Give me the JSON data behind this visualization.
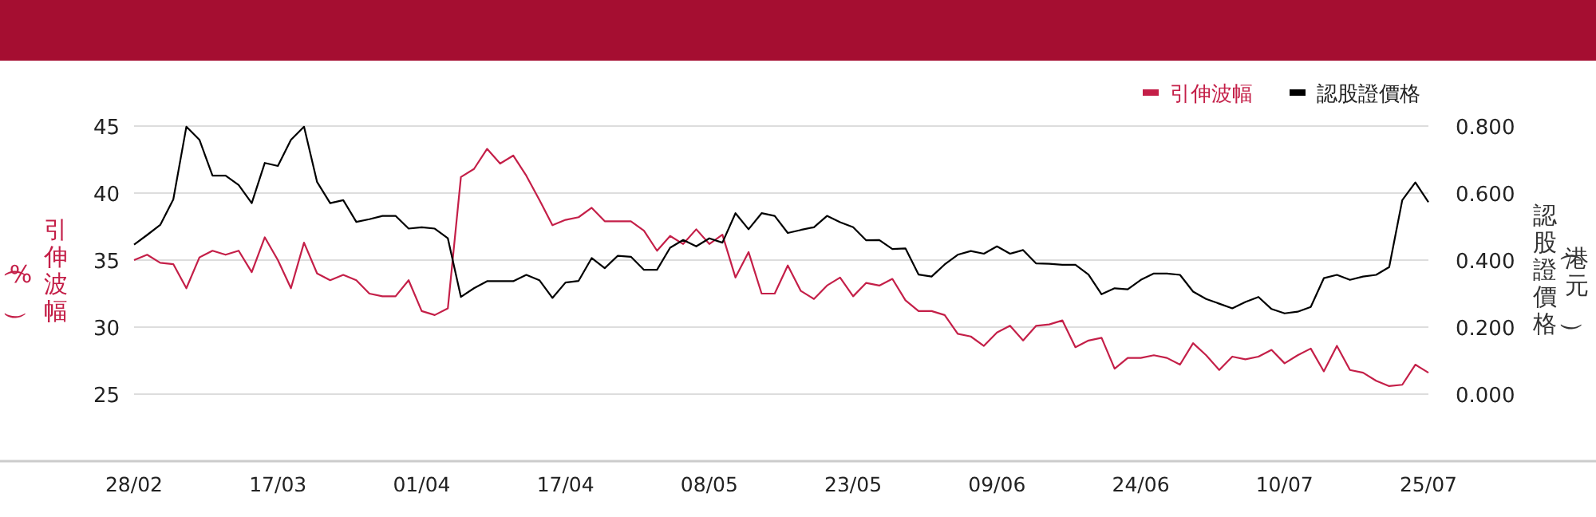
{
  "chart_data": {
    "type": "line",
    "categories": [
      "28/02",
      null,
      null,
      null,
      null,
      null,
      null,
      null,
      null,
      null,
      null,
      "17/03",
      null,
      null,
      null,
      null,
      null,
      null,
      null,
      null,
      null,
      null,
      "01/04",
      null,
      null,
      null,
      null,
      null,
      null,
      null,
      null,
      null,
      null,
      "17/04",
      null,
      null,
      null,
      null,
      null,
      null,
      null,
      null,
      null,
      null,
      "08/05",
      null,
      null,
      null,
      null,
      null,
      null,
      null,
      null,
      null,
      null,
      "23/05",
      null,
      null,
      null,
      null,
      null,
      null,
      null,
      null,
      null,
      null,
      "09/06",
      null,
      null,
      null,
      null,
      null,
      null,
      null,
      null,
      null,
      null,
      "24/06",
      null,
      null,
      null,
      null,
      null,
      null,
      null,
      null,
      null,
      null,
      "10/07",
      null,
      null,
      null,
      null,
      null,
      null,
      null,
      null,
      null,
      null,
      "25/07"
    ],
    "series": [
      {
        "name": "引伸波幅",
        "color": "#c41f48",
        "axis": "y",
        "values": [
          35.0,
          35.4,
          34.8,
          34.7,
          32.9,
          35.2,
          35.7,
          35.4,
          35.7,
          34.1,
          36.7,
          35.0,
          32.9,
          36.3,
          34.0,
          33.5,
          33.9,
          33.5,
          32.5,
          32.3,
          32.3,
          33.5,
          31.2,
          30.9,
          31.4,
          41.2,
          41.8,
          43.3,
          42.2,
          42.8,
          41.3,
          39.5,
          37.6,
          38.0,
          38.2,
          38.9,
          37.9,
          37.9,
          37.9,
          37.2,
          35.7,
          36.8,
          36.2,
          37.3,
          36.2,
          36.9,
          33.7,
          35.6,
          32.5,
          32.5,
          34.6,
          32.7,
          32.1,
          33.1,
          33.7,
          32.3,
          33.3,
          33.1,
          33.6,
          32.0,
          31.2,
          31.2,
          30.9,
          29.5,
          29.3,
          28.6,
          29.6,
          30.1,
          29.0,
          30.1,
          30.2,
          30.5,
          28.5,
          29.0,
          29.2,
          26.9,
          27.7,
          27.7,
          27.9,
          27.7,
          27.2,
          28.8,
          27.9,
          26.8,
          27.8,
          27.6,
          27.8,
          28.3,
          27.3,
          27.9,
          28.4,
          26.7,
          28.6,
          26.8,
          26.6,
          26.0,
          25.6,
          25.7,
          27.2,
          26.6
        ]
      },
      {
        "name": "認股證價格",
        "color": "#000000",
        "axis": "y2",
        "values": [
          0.446,
          0.475,
          0.505,
          0.581,
          0.798,
          0.759,
          0.652,
          0.652,
          0.624,
          0.57,
          0.69,
          0.681,
          0.759,
          0.798,
          0.633,
          0.57,
          0.579,
          0.514,
          0.522,
          0.532,
          0.532,
          0.494,
          0.498,
          0.494,
          0.465,
          0.29,
          0.316,
          0.337,
          0.337,
          0.337,
          0.356,
          0.34,
          0.287,
          0.333,
          0.338,
          0.406,
          0.376,
          0.413,
          0.41,
          0.371,
          0.371,
          0.437,
          0.46,
          0.441,
          0.465,
          0.452,
          0.54,
          0.492,
          0.54,
          0.532,
          0.481,
          0.49,
          0.498,
          0.532,
          0.513,
          0.498,
          0.459,
          0.46,
          0.433,
          0.435,
          0.357,
          0.351,
          0.387,
          0.416,
          0.427,
          0.419,
          0.441,
          0.419,
          0.43,
          0.39,
          0.389,
          0.386,
          0.386,
          0.357,
          0.298,
          0.316,
          0.313,
          0.341,
          0.36,
          0.36,
          0.356,
          0.306,
          0.284,
          0.27,
          0.256,
          0.275,
          0.29,
          0.254,
          0.241,
          0.246,
          0.26,
          0.346,
          0.356,
          0.341,
          0.351,
          0.356,
          0.379,
          0.579,
          0.632,
          0.573
        ]
      }
    ],
    "ylabel": "引伸波幅（%）",
    "y2label": "認股證價格（港元）",
    "ylim": [
      20,
      45
    ],
    "yticks": [
      25,
      30,
      35,
      40,
      45
    ],
    "y2lim": [
      -0.2,
      0.8
    ],
    "y2ticks": [
      {
        "value": 0,
        "label": "0.000"
      },
      {
        "value": 0.2,
        "label": "0.200"
      },
      {
        "value": 0.4,
        "label": "0.400"
      },
      {
        "value": 0.6,
        "label": "0.600"
      },
      {
        "value": 0.8,
        "label": "0.800"
      }
    ],
    "grid": "y",
    "legend": "top right"
  }
}
